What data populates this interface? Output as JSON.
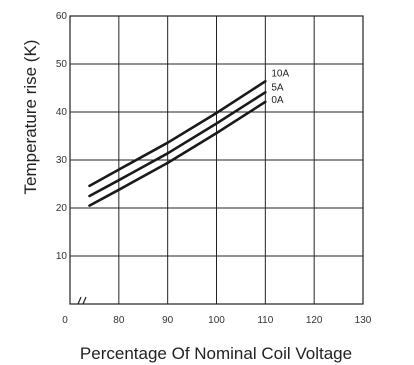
{
  "chart_data": {
    "type": "line",
    "xlabel": "Percentage Of Nominal Coil Voltage",
    "ylabel": "Temperature rise (K)",
    "x_ticks": [
      "0",
      "80",
      "90",
      "100",
      "110",
      "120",
      "130"
    ],
    "y_ticks": [
      "10",
      "20",
      "30",
      "40",
      "50",
      "60"
    ],
    "x_axis_break": true,
    "xlim": [
      70,
      130
    ],
    "ylim": [
      0,
      60
    ],
    "grid": true,
    "series": [
      {
        "name": "10A",
        "x": [
          74,
          80,
          90,
          100,
          110
        ],
        "y": [
          24.6,
          28.0,
          33.6,
          39.8,
          46.4
        ]
      },
      {
        "name": "5A",
        "x": [
          74,
          80,
          90,
          100,
          110
        ],
        "y": [
          22.5,
          25.8,
          31.4,
          37.6,
          44.1
        ]
      },
      {
        "name": "0A",
        "x": [
          74,
          80,
          90,
          100,
          110
        ],
        "y": [
          20.5,
          23.8,
          29.4,
          35.6,
          42.1
        ]
      }
    ],
    "colors": {
      "line": "#1a1a1a",
      "grid": "#222222",
      "frame": "#222222"
    }
  }
}
